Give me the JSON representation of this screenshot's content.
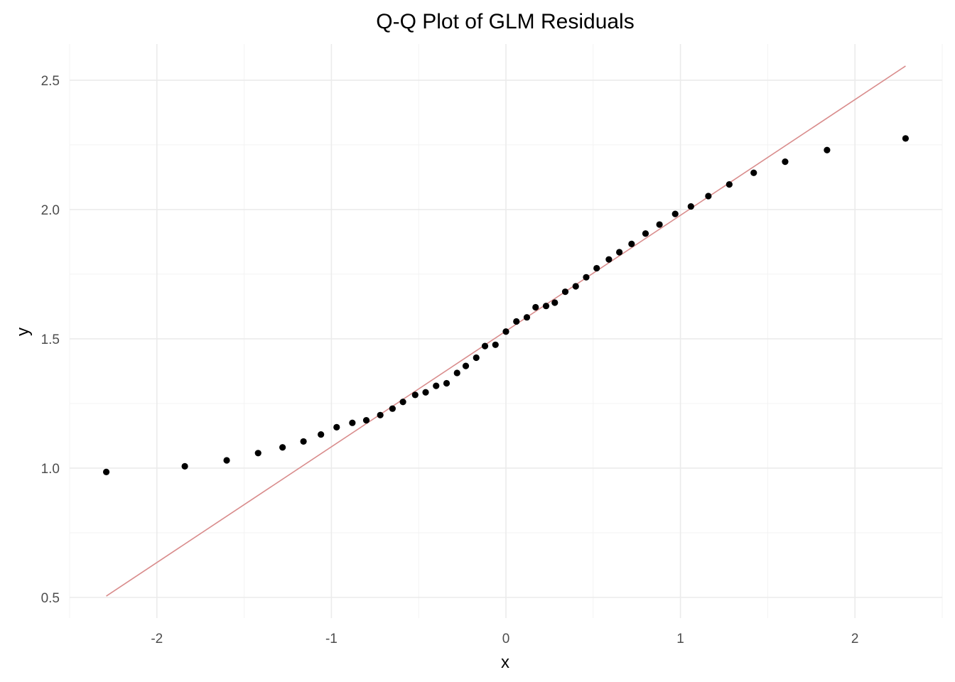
{
  "chart_data": {
    "type": "scatter",
    "title": "Q-Q Plot of GLM Residuals",
    "xlabel": "x",
    "ylabel": "y",
    "xlim": [
      -2.5,
      2.5
    ],
    "ylim": [
      0.42,
      2.64
    ],
    "x_ticks": [
      -2,
      -1,
      0,
      1,
      2
    ],
    "x_tick_labels": [
      "-2",
      "-1",
      "0",
      "1",
      "2"
    ],
    "y_ticks": [
      0.5,
      1.0,
      1.5,
      2.0,
      2.5
    ],
    "y_tick_labels": [
      "0.5",
      "1.0",
      "1.5",
      "2.0",
      "2.5"
    ],
    "grid": true,
    "point_color": "#000000",
    "line_color": "#d98c8c",
    "reference_line": {
      "x": [
        -2.29,
        2.29
      ],
      "y": [
        0.505,
        2.555
      ]
    },
    "points": {
      "x": [
        -2.29,
        -1.84,
        -1.6,
        -1.42,
        -1.28,
        -1.16,
        -1.06,
        -0.97,
        -0.88,
        -0.8,
        -0.72,
        -0.65,
        -0.59,
        -0.52,
        -0.46,
        -0.4,
        -0.34,
        -0.28,
        -0.23,
        -0.17,
        -0.12,
        -0.06,
        0.0,
        0.06,
        0.12,
        0.17,
        0.23,
        0.28,
        0.34,
        0.4,
        0.46,
        0.52,
        0.59,
        0.65,
        0.72,
        0.8,
        0.88,
        0.97,
        1.06,
        1.16,
        1.28,
        1.42,
        1.6,
        1.84,
        2.29
      ],
      "y": [
        0.985,
        1.007,
        1.03,
        1.058,
        1.08,
        1.103,
        1.13,
        1.158,
        1.175,
        1.185,
        1.205,
        1.23,
        1.256,
        1.283,
        1.293,
        1.318,
        1.328,
        1.368,
        1.395,
        1.427,
        1.472,
        1.477,
        1.528,
        1.567,
        1.583,
        1.622,
        1.627,
        1.64,
        1.682,
        1.703,
        1.738,
        1.773,
        1.807,
        1.835,
        1.867,
        1.907,
        1.942,
        1.983,
        2.012,
        2.052,
        2.097,
        2.142,
        2.185,
        2.23,
        2.275
      ]
    }
  }
}
